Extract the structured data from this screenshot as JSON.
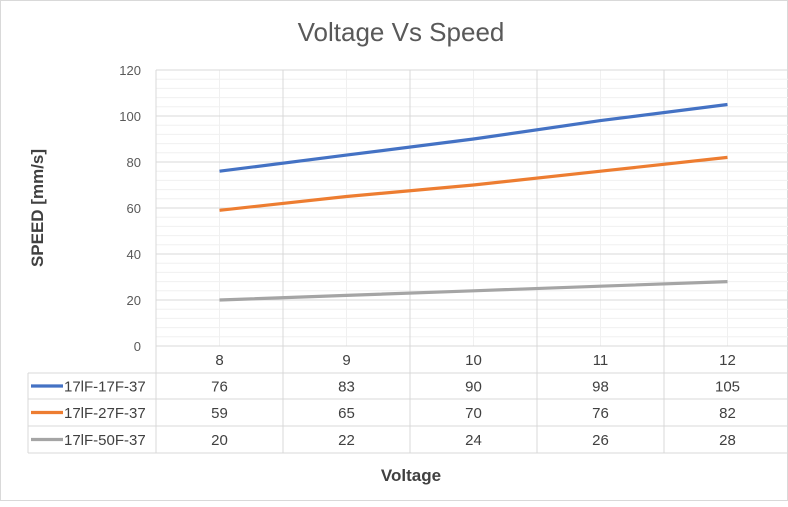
{
  "chart_data": {
    "type": "line",
    "title": "Voltage Vs Speed",
    "xlabel": "Voltage",
    "ylabel": "SPEED [mm/s]",
    "categories": [
      "8",
      "9",
      "10",
      "11",
      "12"
    ],
    "ylim": [
      0,
      120
    ],
    "yticks": [
      "0",
      "20",
      "40",
      "60",
      "80",
      "100",
      "120"
    ],
    "grid": true,
    "legend": "data-table",
    "series": [
      {
        "name": "17lF-17F-37",
        "color": "#4472C4",
        "values": [
          76,
          83,
          90,
          98,
          105
        ]
      },
      {
        "name": "17lF-27F-37",
        "color": "#ED7D31",
        "values": [
          59,
          65,
          70,
          76,
          82
        ]
      },
      {
        "name": "17lF-50F-37",
        "color": "#A5A5A5",
        "values": [
          20,
          22,
          24,
          26,
          28
        ]
      }
    ]
  }
}
